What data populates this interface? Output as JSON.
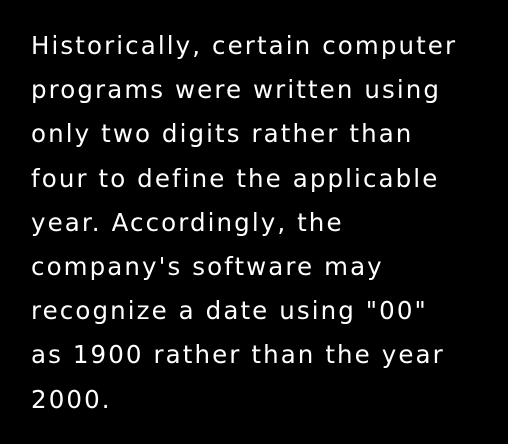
{
  "colors": {
    "background": "#000000",
    "text": "#ffffff"
  },
  "paragraph": {
    "lines": [
      "Historically, certain computer",
      "programs were written using",
      "only two digits rather than",
      "four to define the applicable",
      "year. Accordingly, the",
      "company's software may",
      "recognize a date using \"00\"",
      "as 1900 rather than the year",
      "2000."
    ]
  }
}
